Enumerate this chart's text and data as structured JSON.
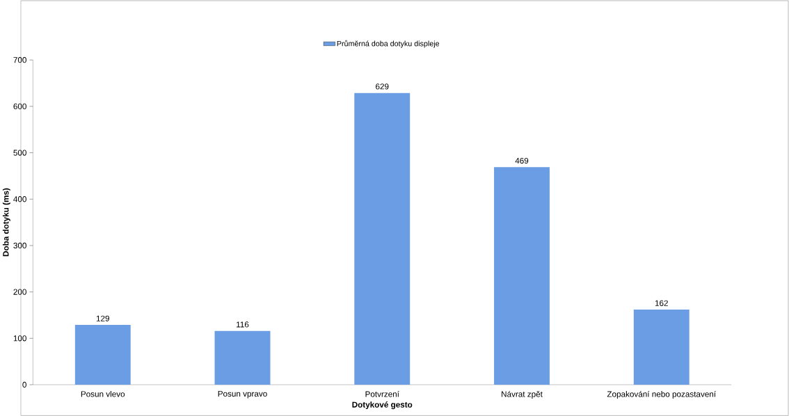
{
  "chart_data": {
    "type": "bar",
    "xlabel": "Dotykové gesto",
    "ylabel": "Doba dotyku (ms)",
    "categories": [
      "Posun vlevo",
      "Posun vpravo",
      "Potvrzení",
      "Návrat zpět",
      "Zopakování nebo pozastavení"
    ],
    "series": [
      {
        "name": "Průměrná doba dotyku displeje",
        "color": "#6a9de3",
        "values": [
          129,
          116,
          629,
          469,
          162
        ]
      }
    ],
    "ylim": [
      0,
      700
    ],
    "yticks": [
      0,
      100,
      200,
      300,
      400,
      500,
      600,
      700
    ],
    "data_labels": true,
    "legend": "top"
  }
}
